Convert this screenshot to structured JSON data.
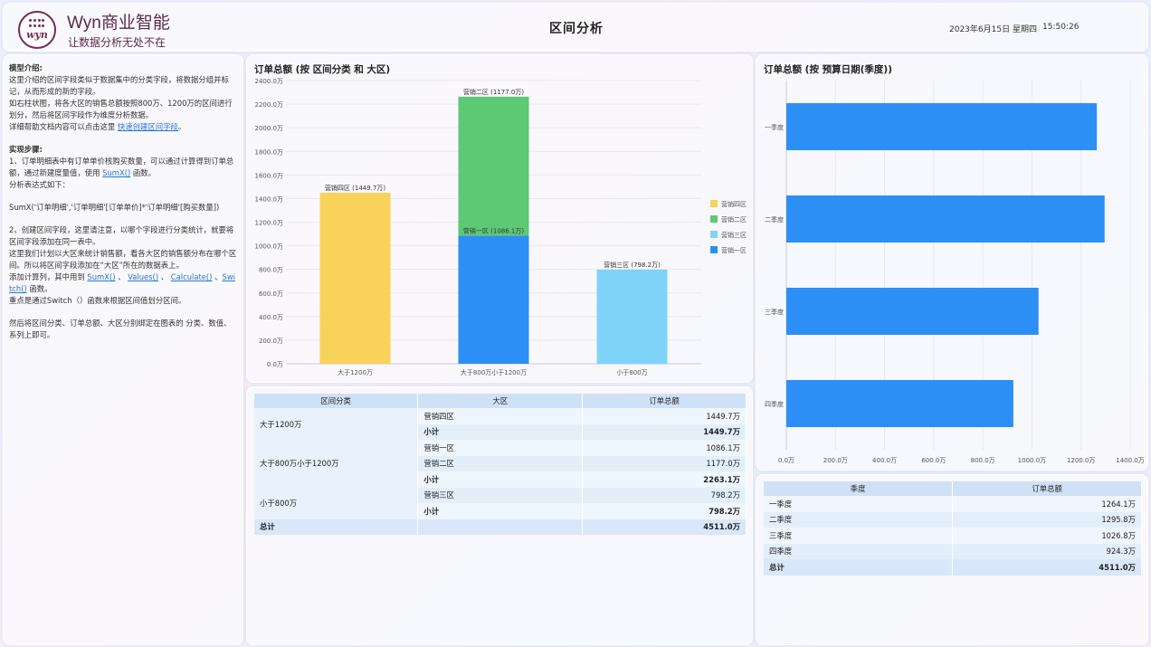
{
  "header": {
    "brand_name": "Wyn商业智能",
    "slogan": "让数据分析无处不在",
    "logo_text": "wyn",
    "title": "区间分析",
    "date": "2023年6月15日 星期四",
    "time": "15:50:26"
  },
  "intro": {
    "heading1": "模型介绍:",
    "p1": "这里介绍的区间字段类似于数据集中的分类字段，将数据分组并标记，从而形成的新的字段。",
    "p2": "如右柱状图，将各大区的销售总额按照800万、1200万的区间进行划分，然后将区间字段作为维度分析数据。",
    "p3_prefix": "详细帮助文档内容可以点击这里 ",
    "p3_link": "快速创建区间字段",
    "p3_suffix": "。",
    "heading2": "实现步骤:",
    "s1_prefix": "1、订单明细表中有订单单价核购买数量，可以通过计算得到订单总额，通过新建度量值，使用 ",
    "s1_link": "SumX()",
    "s1_suffix": " 函数。",
    "s1b": "分析表达式如下：",
    "formula": "SumX('订单明细','订单明细'[订单单价]*'订单明细'[购买数量])",
    "s2": "2、创建区间字段，这里请注意，以哪个字段进行分类统计，就要将区间字段添加在同一表中。",
    "s3": "这里我们计划以大区来统计销售额，看各大区的销售额分布在哪个区间。所以将区间字段添加在“大区”所在的数据表上。",
    "s4_prefix": "添加计算列，其中用到 ",
    "s4_link1": "SumX()",
    "s4_sep1": " 、 ",
    "s4_link2": "Values()",
    "s4_sep2": " 、 ",
    "s4_link3": "Calculate()",
    "s4_sep3": " 、",
    "s4_link4": "Switch()",
    "s4_suffix": " 函数。",
    "s5": "重点是通过Switch（）函数来根据区间值划分区间。",
    "s6": "然后将区间分类、订单总额、大区分别绑定在图表的 分类、数值、系列上即可。"
  },
  "chart_data": [
    {
      "type": "bar",
      "title": "订单总额 (按 区间分类 和 大区)",
      "categories": [
        "大于1200万",
        "大于800万小于1200万",
        "小于800万"
      ],
      "series": [
        {
          "name": "营销一区",
          "color": "#2b8ff5",
          "values": [
            0,
            1086.1,
            0
          ]
        },
        {
          "name": "营销三区",
          "color": "#7fd3f8",
          "values": [
            0,
            0,
            798.2
          ]
        },
        {
          "name": "营销二区",
          "color": "#5dc974",
          "values": [
            0,
            1177.0,
            0
          ]
        },
        {
          "name": "营销四区",
          "color": "#f8d25a",
          "values": [
            1449.7,
            0,
            0
          ]
        }
      ],
      "stacked": true,
      "data_labels": [
        {
          "category": "大于1200万",
          "text": "营销四区 (1449.7万)"
        },
        {
          "category": "大于800万小于1200万",
          "text": "营销二区 (1177.0万)"
        },
        {
          "category": "大于800万小于1200万",
          "text": "营销一区 (1086.1万)"
        },
        {
          "category": "小于800万",
          "text": "营销三区 (798.2万)"
        }
      ],
      "legend": [
        "营销四区",
        "营销二区",
        "营销三区",
        "营销一区"
      ],
      "legend_colors": [
        "#f8d25a",
        "#5dc974",
        "#7fd3f8",
        "#2b8ff5"
      ],
      "legend_position": "right",
      "yticks": [
        "0.0万",
        "200.0万",
        "400.0万",
        "600.0万",
        "800.0万",
        "1000.0万",
        "1200.0万",
        "1400.0万",
        "1600.0万",
        "1800.0万",
        "2000.0万",
        "2200.0万",
        "2400.0万"
      ],
      "ylim": [
        0,
        2400
      ]
    },
    {
      "type": "bar",
      "orientation": "horizontal",
      "title": "订单总额 (按 预算日期(季度))",
      "categories": [
        "一季度",
        "二季度",
        "三季度",
        "四季度"
      ],
      "values": [
        1264.1,
        1295.8,
        1026.8,
        924.3
      ],
      "color": "#2b8ff5",
      "xticks": [
        "0.0万",
        "200.0万",
        "400.0万",
        "600.0万",
        "800.0万",
        "1000.0万",
        "1200.0万",
        "1400.0万"
      ],
      "xlim": [
        0,
        1400
      ]
    }
  ],
  "table1": {
    "headers": [
      "区间分类",
      "大区",
      "订单总额"
    ],
    "groups": [
      {
        "name": "大于1200万",
        "rows": [
          [
            "营销四区",
            "1449.7万"
          ]
        ],
        "subtotal_label": "小计",
        "subtotal": "1449.7万"
      },
      {
        "name": "大于800万小于1200万",
        "rows": [
          [
            "营销一区",
            "1086.1万"
          ],
          [
            "营销二区",
            "1177.0万"
          ]
        ],
        "subtotal_label": "小计",
        "subtotal": "2263.1万"
      },
      {
        "name": "小于800万",
        "rows": [
          [
            "营销三区",
            "798.2万"
          ]
        ],
        "subtotal_label": "小计",
        "subtotal": "798.2万"
      }
    ],
    "total_label": "总计",
    "total": "4511.0万"
  },
  "table2": {
    "headers": [
      "季度",
      "订单总额"
    ],
    "rows": [
      [
        "一季度",
        "1264.1万"
      ],
      [
        "二季度",
        "1295.8万"
      ],
      [
        "三季度",
        "1026.8万"
      ],
      [
        "四季度",
        "924.3万"
      ]
    ],
    "total_label": "总计",
    "total": "4511.0万"
  }
}
